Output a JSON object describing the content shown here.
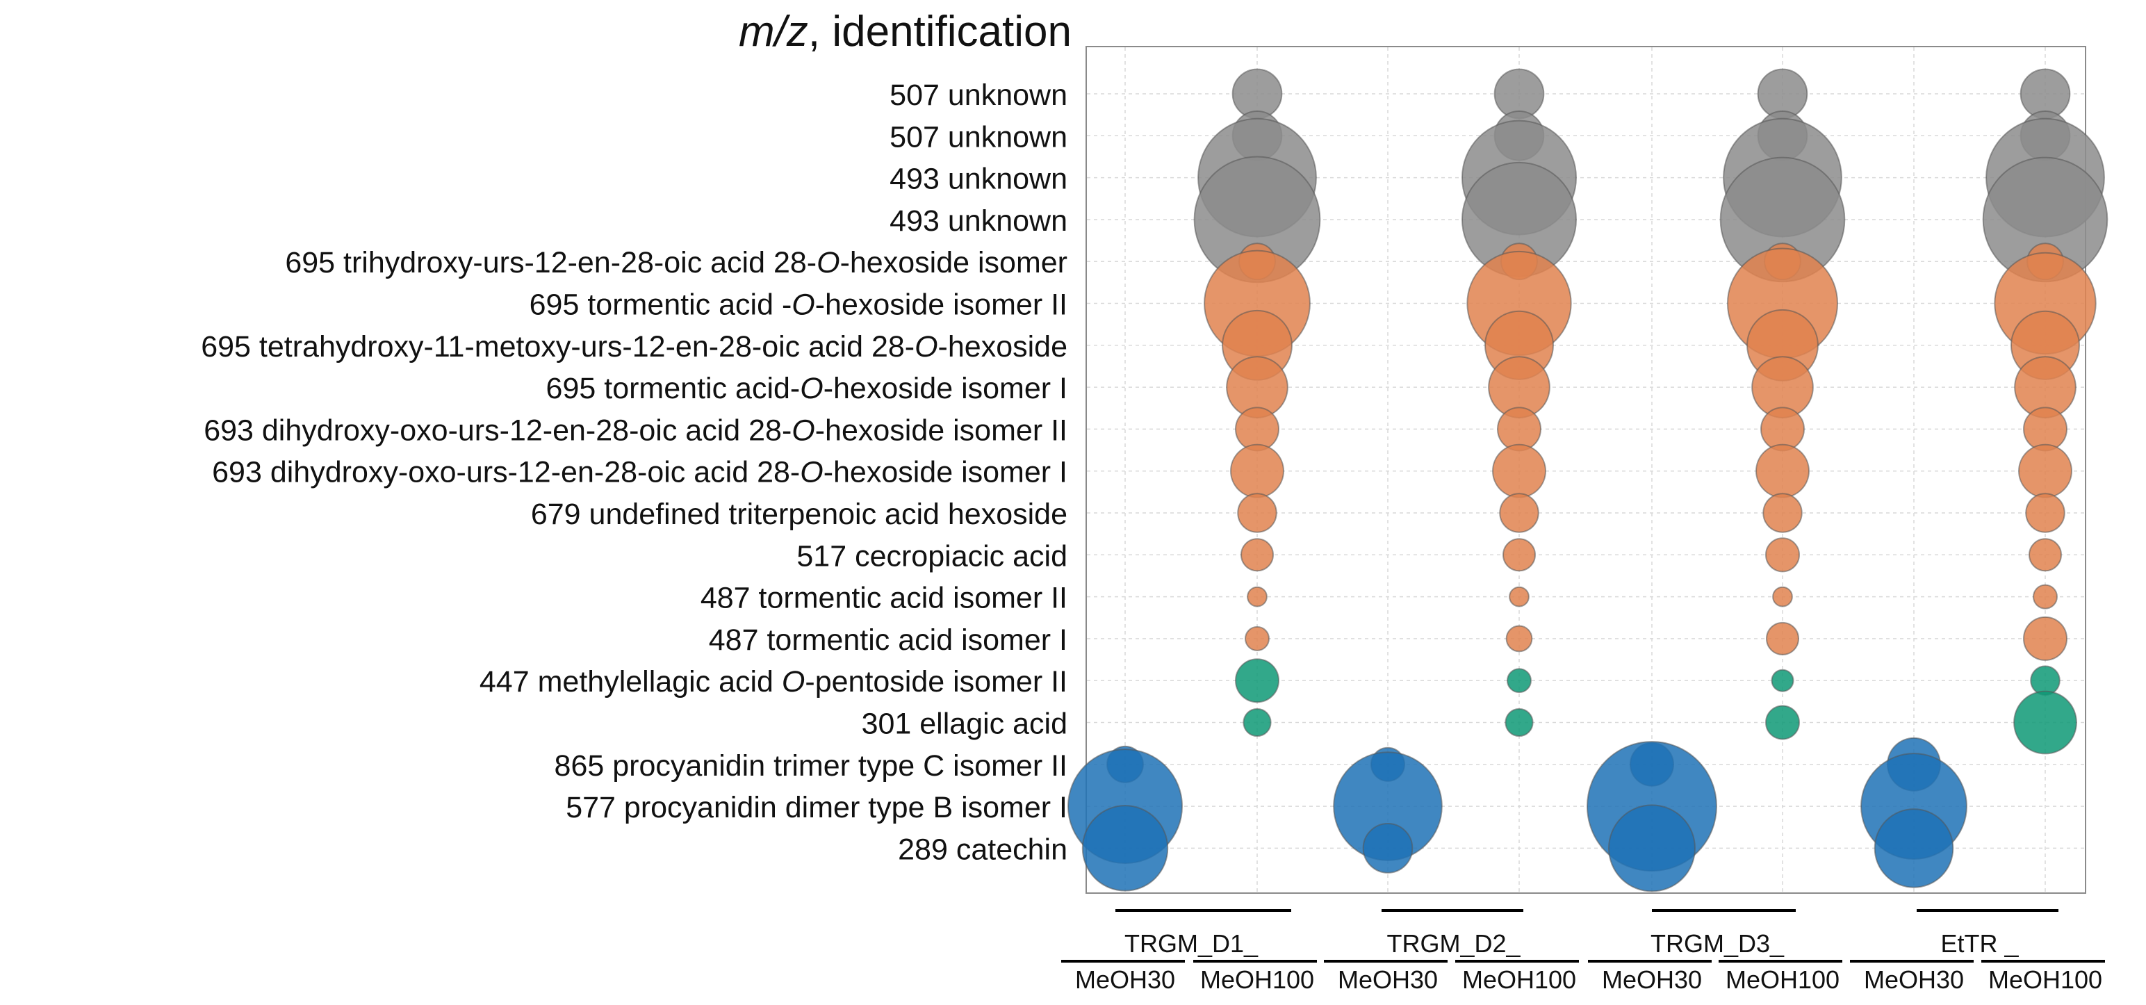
{
  "chart_data": {
    "type": "bubble",
    "title_parts": [
      {
        "text": "m/z",
        "italic": true
      },
      {
        "text": ", identification",
        "italic": false
      }
    ],
    "rows": [
      {
        "mz": "507",
        "name": [
          {
            "text": "unknown"
          }
        ],
        "group": "unknown"
      },
      {
        "mz": "507",
        "name": [
          {
            "text": "unknown"
          }
        ],
        "group": "unknown"
      },
      {
        "mz": "493",
        "name": [
          {
            "text": "unknown"
          }
        ],
        "group": "unknown"
      },
      {
        "mz": "493",
        "name": [
          {
            "text": "unknown"
          }
        ],
        "group": "unknown"
      },
      {
        "mz": "695",
        "name": [
          {
            "text": "trihydroxy-urs-12-en-28-oic acid 28-"
          },
          {
            "text": "O",
            "italic": true
          },
          {
            "text": "-hexoside isomer"
          }
        ],
        "group": "triterpenoid"
      },
      {
        "mz": "695",
        "name": [
          {
            "text": "tormentic acid -"
          },
          {
            "text": "O",
            "italic": true
          },
          {
            "text": "-hexoside isomer II"
          }
        ],
        "group": "triterpenoid"
      },
      {
        "mz": "695",
        "name": [
          {
            "text": "tetrahydroxy-11-metoxy-urs-12-en-28-oic acid 28-"
          },
          {
            "text": "O",
            "italic": true
          },
          {
            "text": "-hexoside"
          }
        ],
        "group": "triterpenoid"
      },
      {
        "mz": "695",
        "name": [
          {
            "text": "tormentic acid-"
          },
          {
            "text": "O",
            "italic": true
          },
          {
            "text": "-hexoside isomer I"
          }
        ],
        "group": "triterpenoid"
      },
      {
        "mz": "693",
        "name": [
          {
            "text": "dihydroxy-oxo-urs-12-en-28-oic acid 28-"
          },
          {
            "text": "O",
            "italic": true
          },
          {
            "text": "-hexoside isomer II"
          }
        ],
        "group": "triterpenoid"
      },
      {
        "mz": "693",
        "name": [
          {
            "text": "dihydroxy-oxo-urs-12-en-28-oic acid 28-"
          },
          {
            "text": "O",
            "italic": true
          },
          {
            "text": "-hexoside isomer I"
          }
        ],
        "group": "triterpenoid"
      },
      {
        "mz": "679",
        "name": [
          {
            "text": "undefined triterpenoic acid hexoside"
          }
        ],
        "group": "triterpenoid"
      },
      {
        "mz": "517",
        "name": [
          {
            "text": "cecropiacic acid"
          }
        ],
        "group": "triterpenoid"
      },
      {
        "mz": "487",
        "name": [
          {
            "text": "tormentic acid isomer II"
          }
        ],
        "group": "triterpenoid"
      },
      {
        "mz": "487",
        "name": [
          {
            "text": "tormentic acid isomer I"
          }
        ],
        "group": "triterpenoid"
      },
      {
        "mz": "447",
        "name": [
          {
            "text": "methylellagic acid "
          },
          {
            "text": "O",
            "italic": true
          },
          {
            "text": "-pentoside isomer II"
          }
        ],
        "group": "ellagic"
      },
      {
        "mz": "301",
        "name": [
          {
            "text": "ellagic acid"
          }
        ],
        "group": "ellagic"
      },
      {
        "mz": "865",
        "name": [
          {
            "text": "procyanidin trimer type C isomer II"
          }
        ],
        "group": "procyanidin"
      },
      {
        "mz": "577",
        "name": [
          {
            "text": "procyanidin dimer type B isomer I"
          }
        ],
        "group": "procyanidin"
      },
      {
        "mz": "289",
        "name": [
          {
            "text": "catechin"
          }
        ],
        "group": "procyanidin"
      }
    ],
    "columns": [
      "MeOH30",
      "MeOH100",
      "MeOH30",
      "MeOH100",
      "MeOH30",
      "MeOH100",
      "MeOH30",
      "MeOH100"
    ],
    "column_groups": [
      {
        "label": "TRGM_D1_",
        "columns": [
          0,
          1
        ]
      },
      {
        "label": "TRGM_D2_",
        "columns": [
          2,
          3
        ]
      },
      {
        "label": "TRGM_D3_",
        "columns": [
          4,
          5
        ]
      },
      {
        "label": "EtTR _",
        "columns": [
          6,
          7
        ]
      }
    ],
    "group_colors": {
      "unknown": "#8c8c8c",
      "triterpenoid": "#e0824f",
      "ellagic": "#0e9975",
      "procyanidin": "#1f72b6"
    },
    "size_legend": "none",
    "grid": true,
    "values": [
      [
        0,
        1.3,
        0,
        1.3,
        0,
        1.3,
        0,
        1.3
      ],
      [
        0,
        1.3,
        0,
        1.3,
        0,
        1.3,
        0,
        1.3
      ],
      [
        0,
        7.5,
        0,
        7.0,
        0,
        7.5,
        0,
        7.5
      ],
      [
        0,
        8.5,
        0,
        7.0,
        0,
        8.3,
        0,
        8.3
      ],
      [
        0,
        0.7,
        0,
        0.7,
        0,
        0.7,
        0,
        0.7
      ],
      [
        0,
        6.0,
        0,
        5.8,
        0,
        6.5,
        0,
        5.5
      ],
      [
        0,
        2.6,
        0,
        2.5,
        0,
        2.7,
        0,
        2.5
      ],
      [
        0,
        2.0,
        0,
        2.0,
        0,
        2.0,
        0,
        2.0
      ],
      [
        0,
        1.0,
        0,
        1.0,
        0,
        1.0,
        0,
        1.0
      ],
      [
        0,
        1.5,
        0,
        1.5,
        0,
        1.5,
        0,
        1.5
      ],
      [
        0,
        0.8,
        0,
        0.8,
        0,
        0.8,
        0,
        0.8
      ],
      [
        0,
        0.55,
        0,
        0.55,
        0,
        0.6,
        0,
        0.55
      ],
      [
        0,
        0.2,
        0,
        0.2,
        0,
        0.2,
        0,
        0.3
      ],
      [
        0,
        0.3,
        0,
        0.35,
        0,
        0.55,
        0,
        1.0
      ],
      [
        0,
        1.0,
        0,
        0.3,
        0,
        0.25,
        0,
        0.45
      ],
      [
        0,
        0.4,
        0,
        0.4,
        0,
        0.6,
        0,
        2.1
      ],
      [
        0.7,
        0,
        0.6,
        0,
        1.0,
        0,
        1.5,
        0
      ],
      [
        7.0,
        0,
        6.3,
        0,
        9.0,
        0,
        6.0,
        0
      ],
      [
        3.9,
        0,
        1.3,
        0,
        4.0,
        0,
        3.3,
        0
      ]
    ]
  }
}
